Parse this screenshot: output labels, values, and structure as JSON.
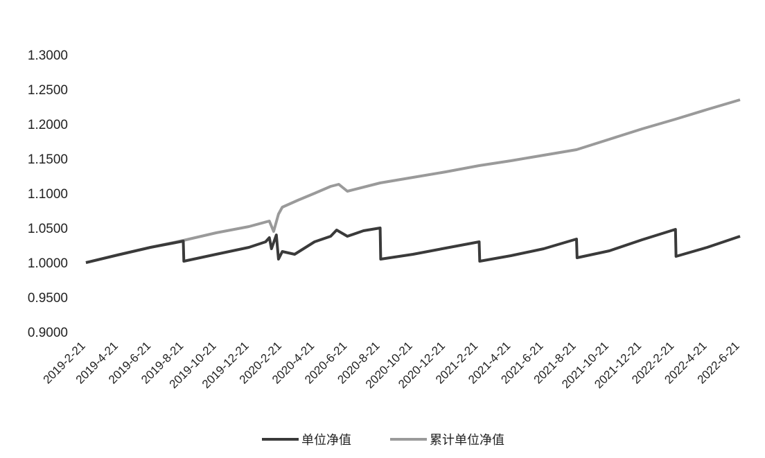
{
  "chart_data": {
    "type": "line",
    "title": "",
    "xlabel": "",
    "ylabel": "",
    "ylim": [
      0.9,
      1.3
    ],
    "y_ticks": [
      "0.9000",
      "0.9500",
      "1.0000",
      "1.0500",
      "1.1000",
      "1.1500",
      "1.2000",
      "1.2500",
      "1.3000"
    ],
    "x_tick_labels": [
      "2019-2-21",
      "2019-4-21",
      "2019-6-21",
      "2019-8-21",
      "2019-10-21",
      "2019-12-21",
      "2020-2-21",
      "2020-4-21",
      "2020-6-21",
      "2020-8-21",
      "2020-10-21",
      "2020-12-21",
      "2021-2-21",
      "2021-4-21",
      "2021-6-21",
      "2021-8-21",
      "2021-10-21",
      "2021-12-21",
      "2022-2-21",
      "2022-4-21",
      "2022-6-21"
    ],
    "grid": false,
    "legend_position": "bottom",
    "series": [
      {
        "name": "单位净值",
        "color": "#3a3a3a",
        "points": [
          [
            "2019-02-21",
            1.0
          ],
          [
            "2019-04-21",
            1.011
          ],
          [
            "2019-06-21",
            1.022
          ],
          [
            "2019-08-21",
            1.031
          ],
          [
            "2019-08-22",
            1.002
          ],
          [
            "2019-10-21",
            1.012
          ],
          [
            "2019-12-21",
            1.022
          ],
          [
            "2020-01-21",
            1.03
          ],
          [
            "2020-01-28",
            1.036
          ],
          [
            "2020-02-01",
            1.02
          ],
          [
            "2020-02-10",
            1.04
          ],
          [
            "2020-02-14",
            1.005
          ],
          [
            "2020-02-21",
            1.016
          ],
          [
            "2020-03-15",
            1.012
          ],
          [
            "2020-04-21",
            1.03
          ],
          [
            "2020-05-21",
            1.038
          ],
          [
            "2020-06-01",
            1.047
          ],
          [
            "2020-06-21",
            1.038
          ],
          [
            "2020-07-21",
            1.046
          ],
          [
            "2020-08-21",
            1.05
          ],
          [
            "2020-08-22",
            1.005
          ],
          [
            "2020-10-21",
            1.012
          ],
          [
            "2020-12-21",
            1.021
          ],
          [
            "2021-02-21",
            1.03
          ],
          [
            "2021-02-22",
            1.002
          ],
          [
            "2021-04-21",
            1.01
          ],
          [
            "2021-06-21",
            1.02
          ],
          [
            "2021-08-21",
            1.034
          ],
          [
            "2021-08-22",
            1.007
          ],
          [
            "2021-10-21",
            1.017
          ],
          [
            "2021-12-21",
            1.033
          ],
          [
            "2022-02-21",
            1.048
          ],
          [
            "2022-02-22",
            1.009
          ],
          [
            "2022-04-21",
            1.022
          ],
          [
            "2022-06-21",
            1.038
          ]
        ]
      },
      {
        "name": "累计单位净值",
        "color": "#9a9a9a",
        "points": [
          [
            "2019-02-21",
            1.0
          ],
          [
            "2019-04-21",
            1.011
          ],
          [
            "2019-06-21",
            1.022
          ],
          [
            "2019-08-21",
            1.032
          ],
          [
            "2019-10-21",
            1.043
          ],
          [
            "2019-12-21",
            1.052
          ],
          [
            "2020-01-28",
            1.06
          ],
          [
            "2020-02-05",
            1.045
          ],
          [
            "2020-02-14",
            1.07
          ],
          [
            "2020-02-21",
            1.08
          ],
          [
            "2020-03-21",
            1.09
          ],
          [
            "2020-04-21",
            1.1
          ],
          [
            "2020-05-21",
            1.11
          ],
          [
            "2020-06-05",
            1.113
          ],
          [
            "2020-06-21",
            1.103
          ],
          [
            "2020-08-21",
            1.115
          ],
          [
            "2020-10-21",
            1.123
          ],
          [
            "2020-12-21",
            1.131
          ],
          [
            "2021-02-21",
            1.14
          ],
          [
            "2021-04-21",
            1.147
          ],
          [
            "2021-06-21",
            1.155
          ],
          [
            "2021-08-21",
            1.163
          ],
          [
            "2021-10-21",
            1.178
          ],
          [
            "2021-12-21",
            1.193
          ],
          [
            "2022-02-21",
            1.207
          ],
          [
            "2022-04-21",
            1.221
          ],
          [
            "2022-06-21",
            1.235
          ]
        ]
      }
    ]
  }
}
